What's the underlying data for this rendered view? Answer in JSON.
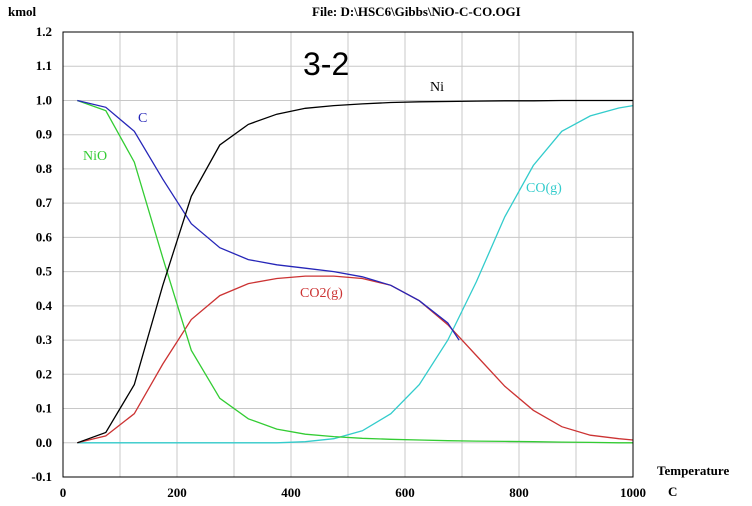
{
  "header": {
    "units": "kmol",
    "file": "File: D:\\HSC6\\Gibbs\\NiO-C-CO.OGI",
    "big_label": "3-2"
  },
  "chart_data": {
    "type": "line",
    "xlabel": "Temperature",
    "xunit": "C",
    "ylabel": "kmol",
    "xlim": [
      0,
      1000
    ],
    "ylim": [
      -0.1,
      1.2
    ],
    "xticks": [
      0,
      200,
      400,
      600,
      800,
      1000
    ],
    "yticks": [
      -0.1,
      0.0,
      0.1,
      0.2,
      0.3,
      0.4,
      0.5,
      0.6,
      0.7,
      0.8,
      0.9,
      1.0,
      1.1,
      1.2
    ],
    "grid": true,
    "series": [
      {
        "name": "Ni",
        "color": "#000000",
        "x": [
          25,
          75,
          125,
          175,
          225,
          275,
          325,
          375,
          425,
          475,
          525,
          575,
          625,
          675,
          725,
          775,
          825,
          875,
          925,
          975,
          1000
        ],
        "y": [
          0.0,
          0.03,
          0.17,
          0.46,
          0.72,
          0.87,
          0.93,
          0.96,
          0.977,
          0.985,
          0.99,
          0.994,
          0.996,
          0.997,
          0.998,
          0.999,
          0.999,
          1.0,
          1.0,
          1.0,
          1.0
        ]
      },
      {
        "name": "C",
        "color": "#2626b8",
        "x": [
          25,
          75,
          125,
          175,
          225,
          275,
          325,
          375,
          425,
          475,
          525,
          575,
          625,
          675,
          695
        ],
        "y": [
          1.0,
          0.98,
          0.91,
          0.77,
          0.64,
          0.57,
          0.535,
          0.52,
          0.51,
          0.5,
          0.485,
          0.46,
          0.415,
          0.35,
          0.3
        ]
      },
      {
        "name": "NiO",
        "color": "#33cc33",
        "x": [
          25,
          75,
          125,
          175,
          225,
          275,
          325,
          375,
          425,
          475,
          525,
          575,
          625,
          675,
          725,
          775,
          825,
          875,
          925,
          975,
          1000
        ],
        "y": [
          1.0,
          0.97,
          0.82,
          0.54,
          0.27,
          0.13,
          0.07,
          0.04,
          0.025,
          0.018,
          0.013,
          0.01,
          0.008,
          0.006,
          0.005,
          0.004,
          0.003,
          0.002,
          0.001,
          0.0,
          0.0
        ]
      },
      {
        "name": "CO2(g)",
        "color": "#cc3333",
        "x": [
          25,
          75,
          125,
          175,
          225,
          275,
          325,
          375,
          425,
          475,
          525,
          575,
          625,
          675,
          725,
          775,
          825,
          875,
          925,
          975,
          1000
        ],
        "y": [
          0.0,
          0.02,
          0.085,
          0.23,
          0.36,
          0.43,
          0.465,
          0.48,
          0.487,
          0.487,
          0.48,
          0.46,
          0.415,
          0.345,
          0.255,
          0.165,
          0.095,
          0.047,
          0.022,
          0.012,
          0.008
        ]
      },
      {
        "name": "CO(g)",
        "color": "#33cccc",
        "x": [
          25,
          75,
          125,
          175,
          225,
          275,
          325,
          375,
          425,
          475,
          525,
          575,
          625,
          675,
          725,
          775,
          825,
          875,
          925,
          975,
          1000
        ],
        "y": [
          0.0,
          0.0,
          0.0,
          0.0,
          0.0,
          0.0,
          0.0,
          0.0,
          0.003,
          0.012,
          0.035,
          0.085,
          0.17,
          0.3,
          0.47,
          0.66,
          0.81,
          0.91,
          0.955,
          0.978,
          0.985
        ]
      }
    ]
  }
}
